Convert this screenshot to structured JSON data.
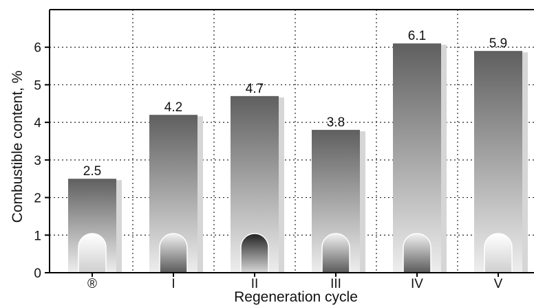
{
  "chart_data": {
    "type": "bar",
    "title": "",
    "xlabel": "Regeneration cycle",
    "ylabel": "Combustible content, %",
    "categories": [
      "®",
      "I",
      "II",
      "III",
      "IV",
      "V"
    ],
    "values": [
      2.5,
      4.2,
      4.7,
      3.8,
      6.1,
      5.9
    ],
    "data_labels": [
      "2.5",
      "4.2",
      "4.7",
      "3.8",
      "6.1",
      "5.9"
    ],
    "ylim": [
      0,
      7
    ],
    "yticks": [
      "0",
      "1",
      "2",
      "3",
      "4",
      "5",
      "6"
    ],
    "grid": true,
    "legend": "none",
    "colors": {
      "bar_dark": "#5f5f5f",
      "bar_light": "#e8e8e8",
      "bar_shadow": "#d6d6d6",
      "grid": "#222222",
      "axis": "#000000"
    }
  }
}
